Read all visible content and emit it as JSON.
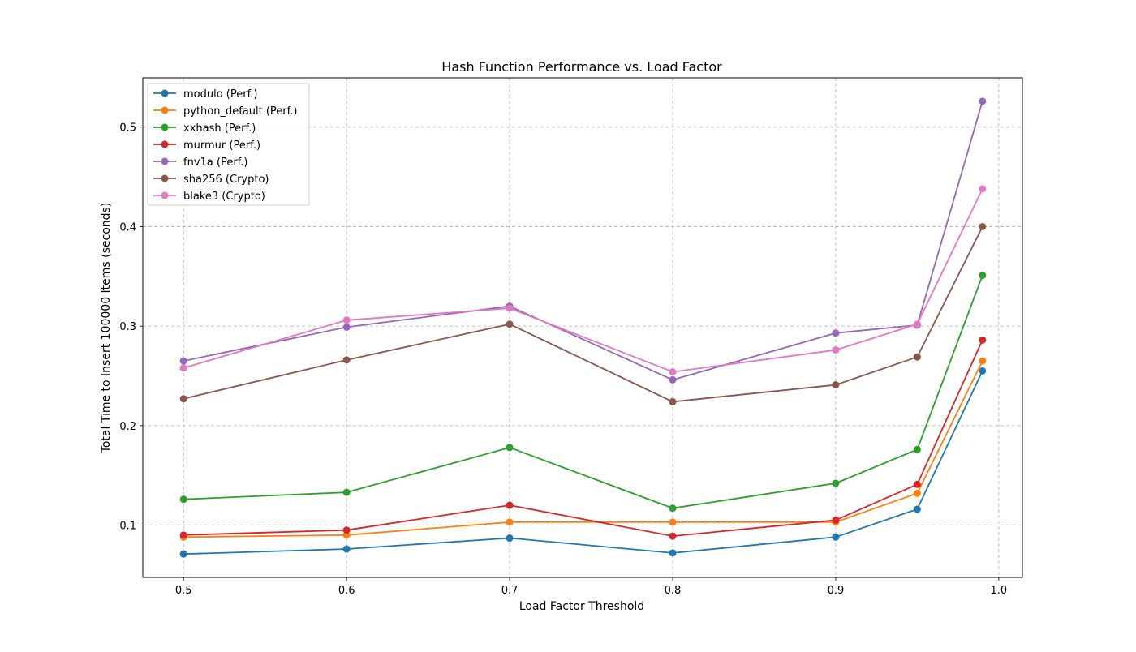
{
  "chart_data": {
    "type": "line",
    "title": "Hash Function Performance vs. Load Factor",
    "xlabel": "Load Factor Threshold",
    "ylabel": "Total Time to Insert 100000 Items (seconds)",
    "x": [
      0.5,
      0.6,
      0.7,
      0.8,
      0.9,
      0.95,
      0.99
    ],
    "xlim": [
      0.475,
      1.0145
    ],
    "ylim": [
      0.0475,
      0.5495
    ],
    "xticks": [
      "0.5",
      "0.6",
      "0.7",
      "0.8",
      "0.9",
      "1.0"
    ],
    "yticks": [
      "0.1",
      "0.2",
      "0.3",
      "0.4",
      "0.5"
    ],
    "grid": true,
    "legend_position": "upper left",
    "series": [
      {
        "name": "modulo (Perf.)",
        "color": "#1f77b4",
        "values": [
          0.071,
          0.076,
          0.087,
          0.072,
          0.088,
          0.116,
          0.255
        ]
      },
      {
        "name": "python_default (Perf.)",
        "color": "#ff7f0e",
        "values": [
          0.088,
          0.09,
          0.103,
          0.103,
          0.103,
          0.132,
          0.265
        ]
      },
      {
        "name": "xxhash (Perf.)",
        "color": "#2ca02c",
        "values": [
          0.126,
          0.133,
          0.178,
          0.117,
          0.142,
          0.176,
          0.351
        ]
      },
      {
        "name": "murmur (Perf.)",
        "color": "#d62728",
        "values": [
          0.09,
          0.095,
          0.12,
          0.089,
          0.105,
          0.141,
          0.286
        ]
      },
      {
        "name": "fnv1a (Perf.)",
        "color": "#9467bd",
        "values": [
          0.265,
          0.299,
          0.32,
          0.246,
          0.293,
          0.301,
          0.526
        ]
      },
      {
        "name": "sha256 (Crypto)",
        "color": "#8c564b",
        "values": [
          0.227,
          0.266,
          0.302,
          0.224,
          0.241,
          0.269,
          0.4
        ]
      },
      {
        "name": "blake3 (Crypto)",
        "color": "#e377c2",
        "values": [
          0.258,
          0.306,
          0.318,
          0.254,
          0.276,
          0.302,
          0.438
        ]
      }
    ]
  }
}
